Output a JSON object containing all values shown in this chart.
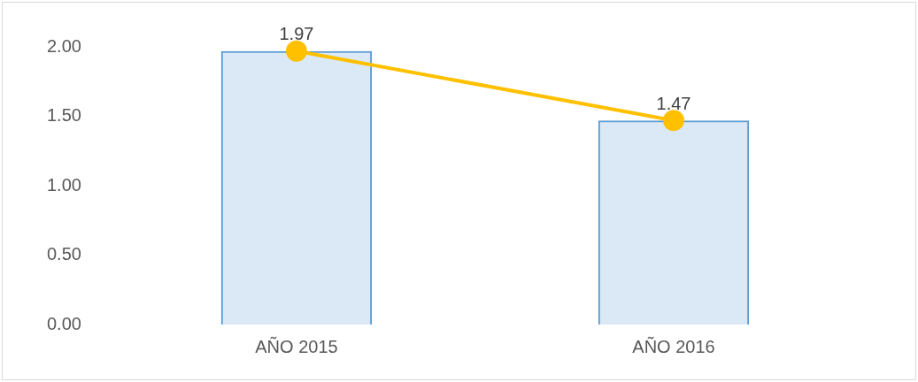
{
  "chart_data": {
    "type": "bar",
    "categories": [
      "AÑO 2015",
      "AÑO 2016"
    ],
    "series": [
      {
        "color": "#5b9bd5",
        "values": [
          1.97,
          1.47
        ]
      },
      {
        "type": "line",
        "color": "#ffc000",
        "values": [
          1.97,
          1.47
        ],
        "value_labels": [
          "1.97",
          "1.47"
        ]
      }
    ],
    "ylim": [
      0,
      2
    ],
    "yticks": [
      {
        "value": 0,
        "label": "0.00"
      },
      {
        "value": 0.5,
        "label": "0.50"
      },
      {
        "value": 1,
        "label": "1.00"
      },
      {
        "value": 1.5,
        "label": "1.50"
      },
      {
        "value": 2,
        "label": "2.00"
      }
    ],
    "grid": false,
    "legend": false,
    "marker": "circle",
    "line_style": "solid"
  }
}
